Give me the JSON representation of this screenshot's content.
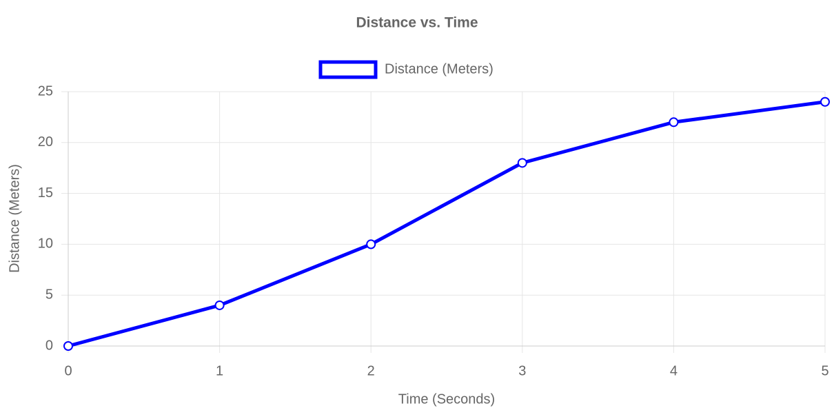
{
  "chart_data": {
    "type": "line",
    "title": "Distance vs. Time",
    "xlabel": "Time (Seconds)",
    "ylabel": "Distance (Meters)",
    "x": [
      0,
      1,
      2,
      3,
      4,
      5
    ],
    "series": [
      {
        "name": "Distance (Meters)",
        "color": "#0000ff",
        "values": [
          0,
          4,
          10,
          18,
          22,
          24
        ]
      }
    ],
    "xlim": [
      0,
      5
    ],
    "xticks": [
      0,
      1,
      2,
      3,
      4,
      5
    ],
    "ylim": [
      0,
      25
    ],
    "yticks": [
      0,
      5,
      10,
      15,
      20,
      25
    ],
    "grid": true,
    "legend": "top"
  }
}
